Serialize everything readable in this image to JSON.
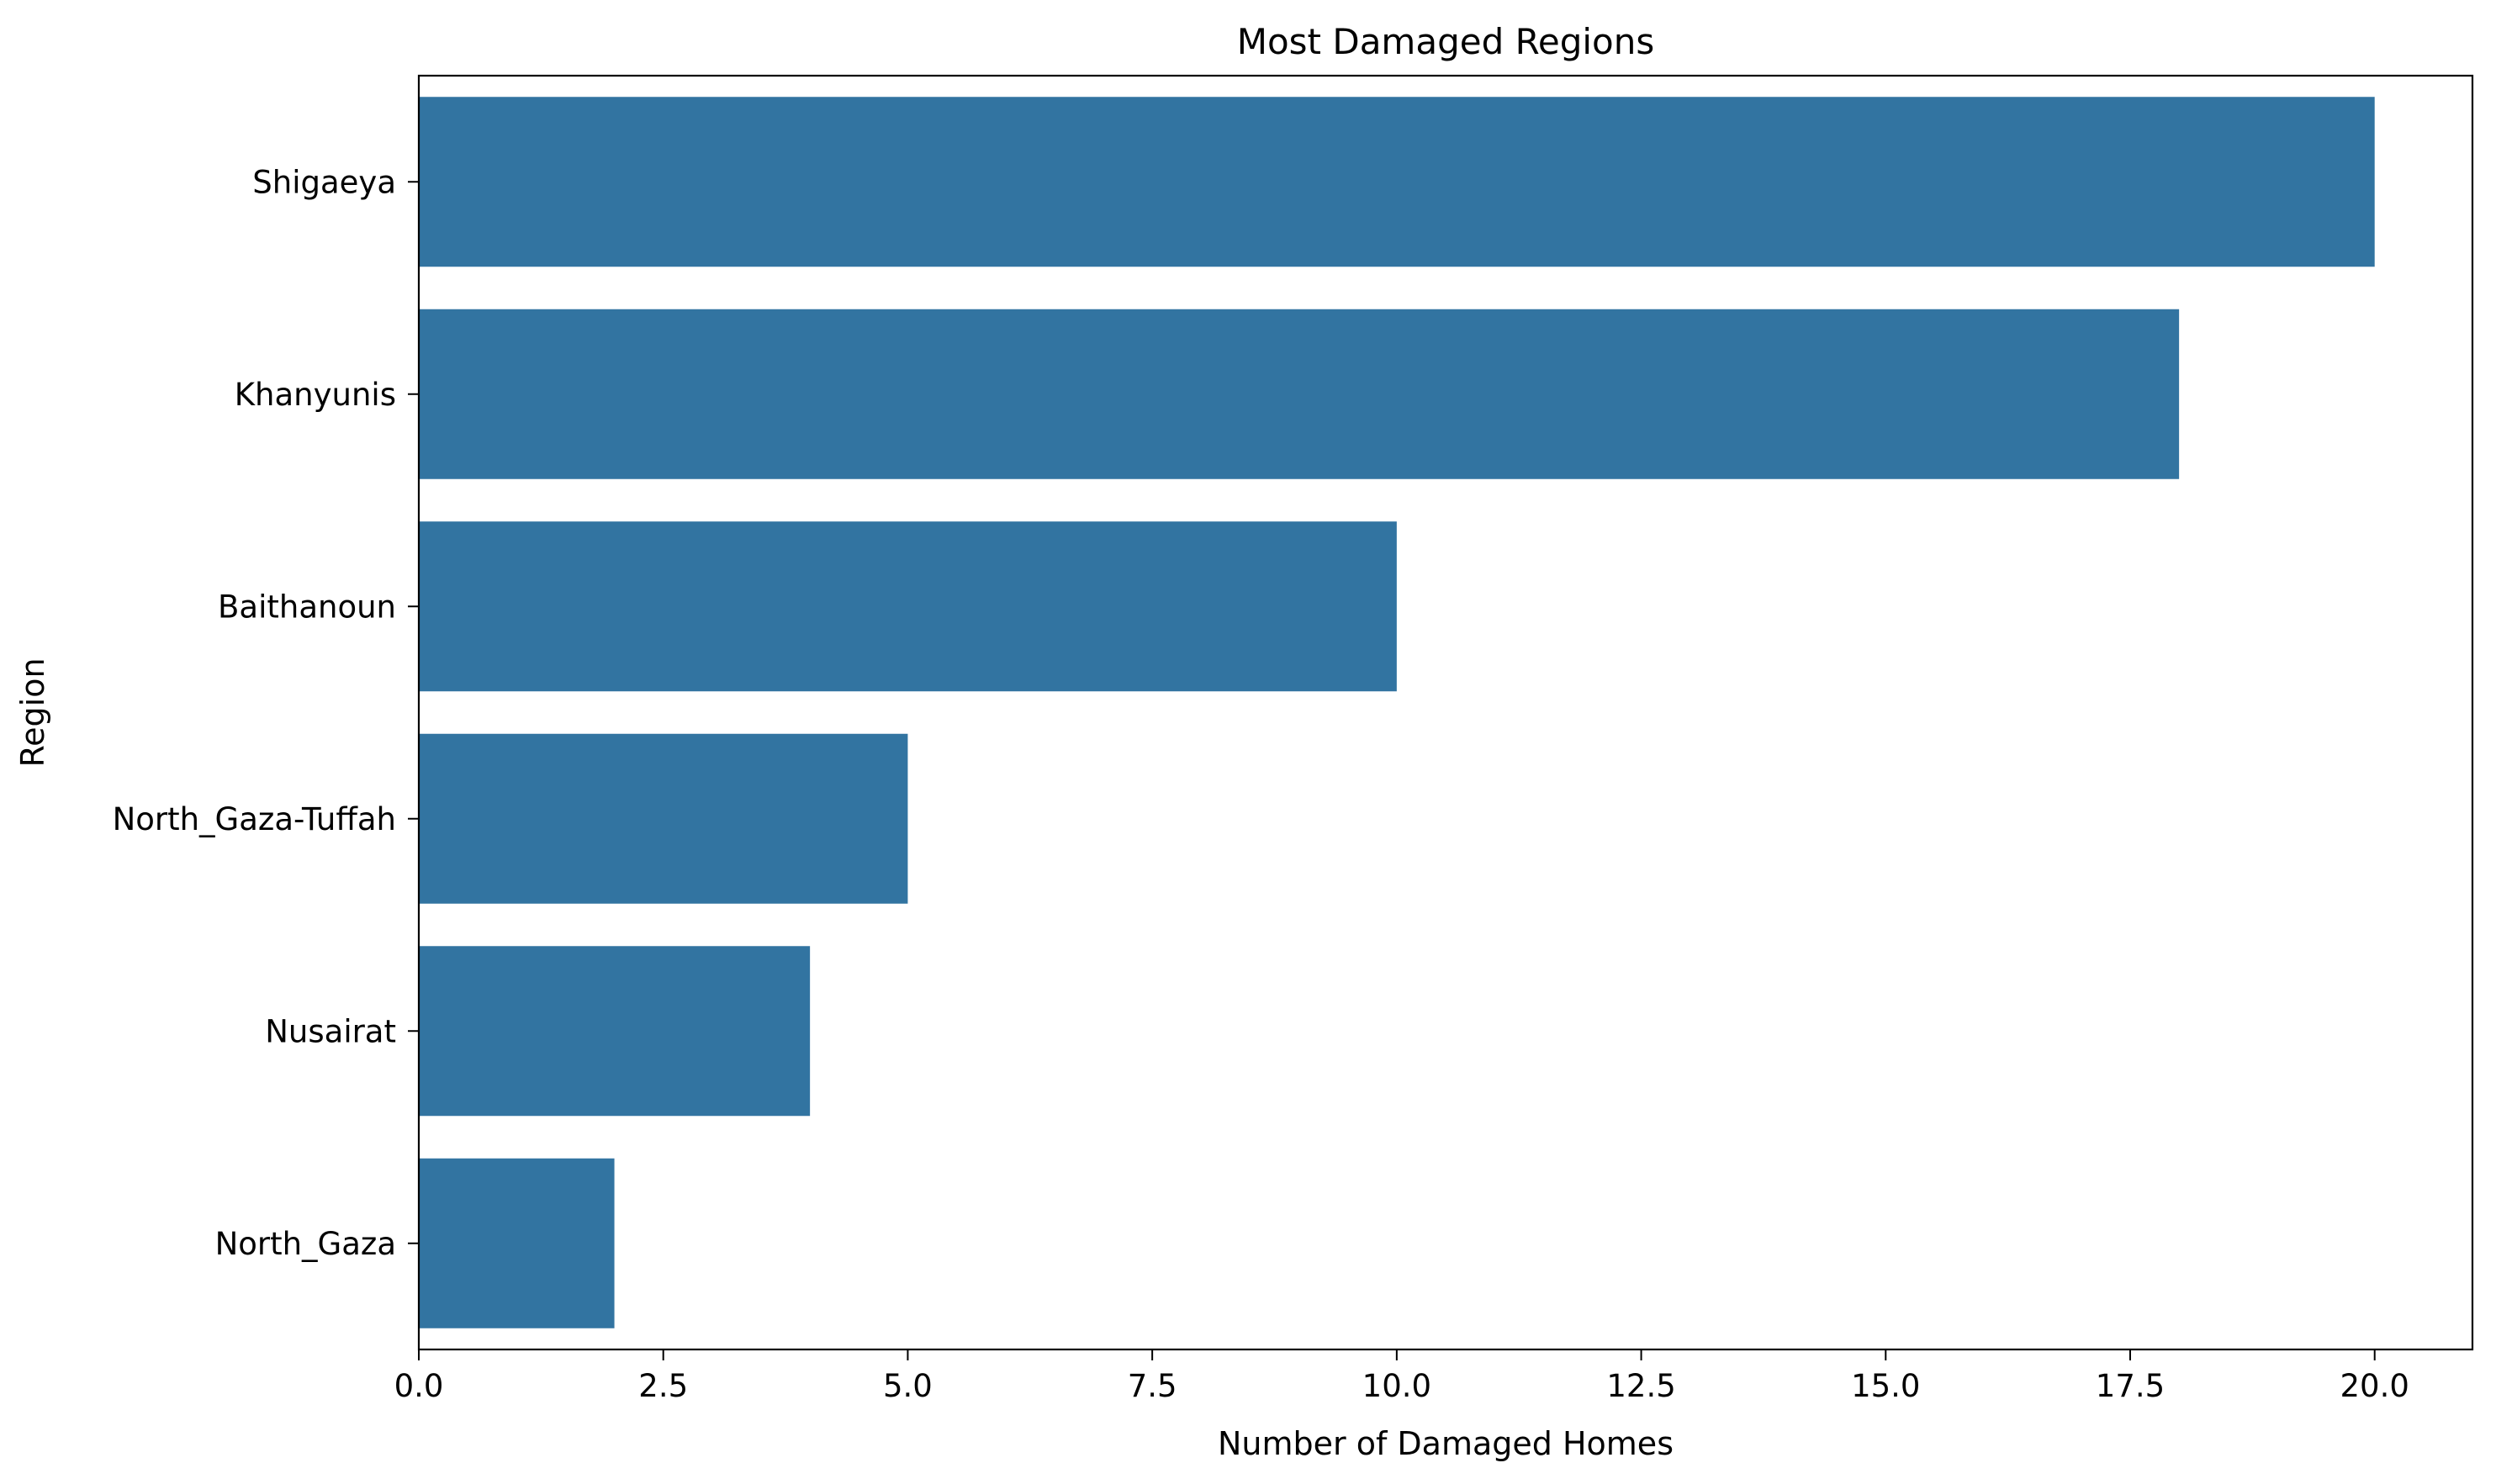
{
  "chart_data": {
    "type": "bar",
    "orientation": "horizontal",
    "title": "Most Damaged Regions",
    "xlabel": "Number of Damaged Homes",
    "ylabel": "Region",
    "categories": [
      "Shigaeya",
      "Khanyunis",
      "Baithanoun",
      "North_Gaza-Tuffah",
      "Nusairat",
      "North_Gaza"
    ],
    "values": [
      20,
      18,
      10,
      5,
      4,
      2
    ],
    "xlim": [
      0,
      21
    ],
    "xticks": [
      0,
      2.5,
      5,
      7.5,
      10,
      12.5,
      15,
      17.5,
      20
    ],
    "xtick_labels": [
      "0.0",
      "2.5",
      "5.0",
      "7.5",
      "10.0",
      "12.5",
      "15.0",
      "17.5",
      "20.0"
    ],
    "bar_color": "#3274a1",
    "grid": false,
    "legend": false
  }
}
